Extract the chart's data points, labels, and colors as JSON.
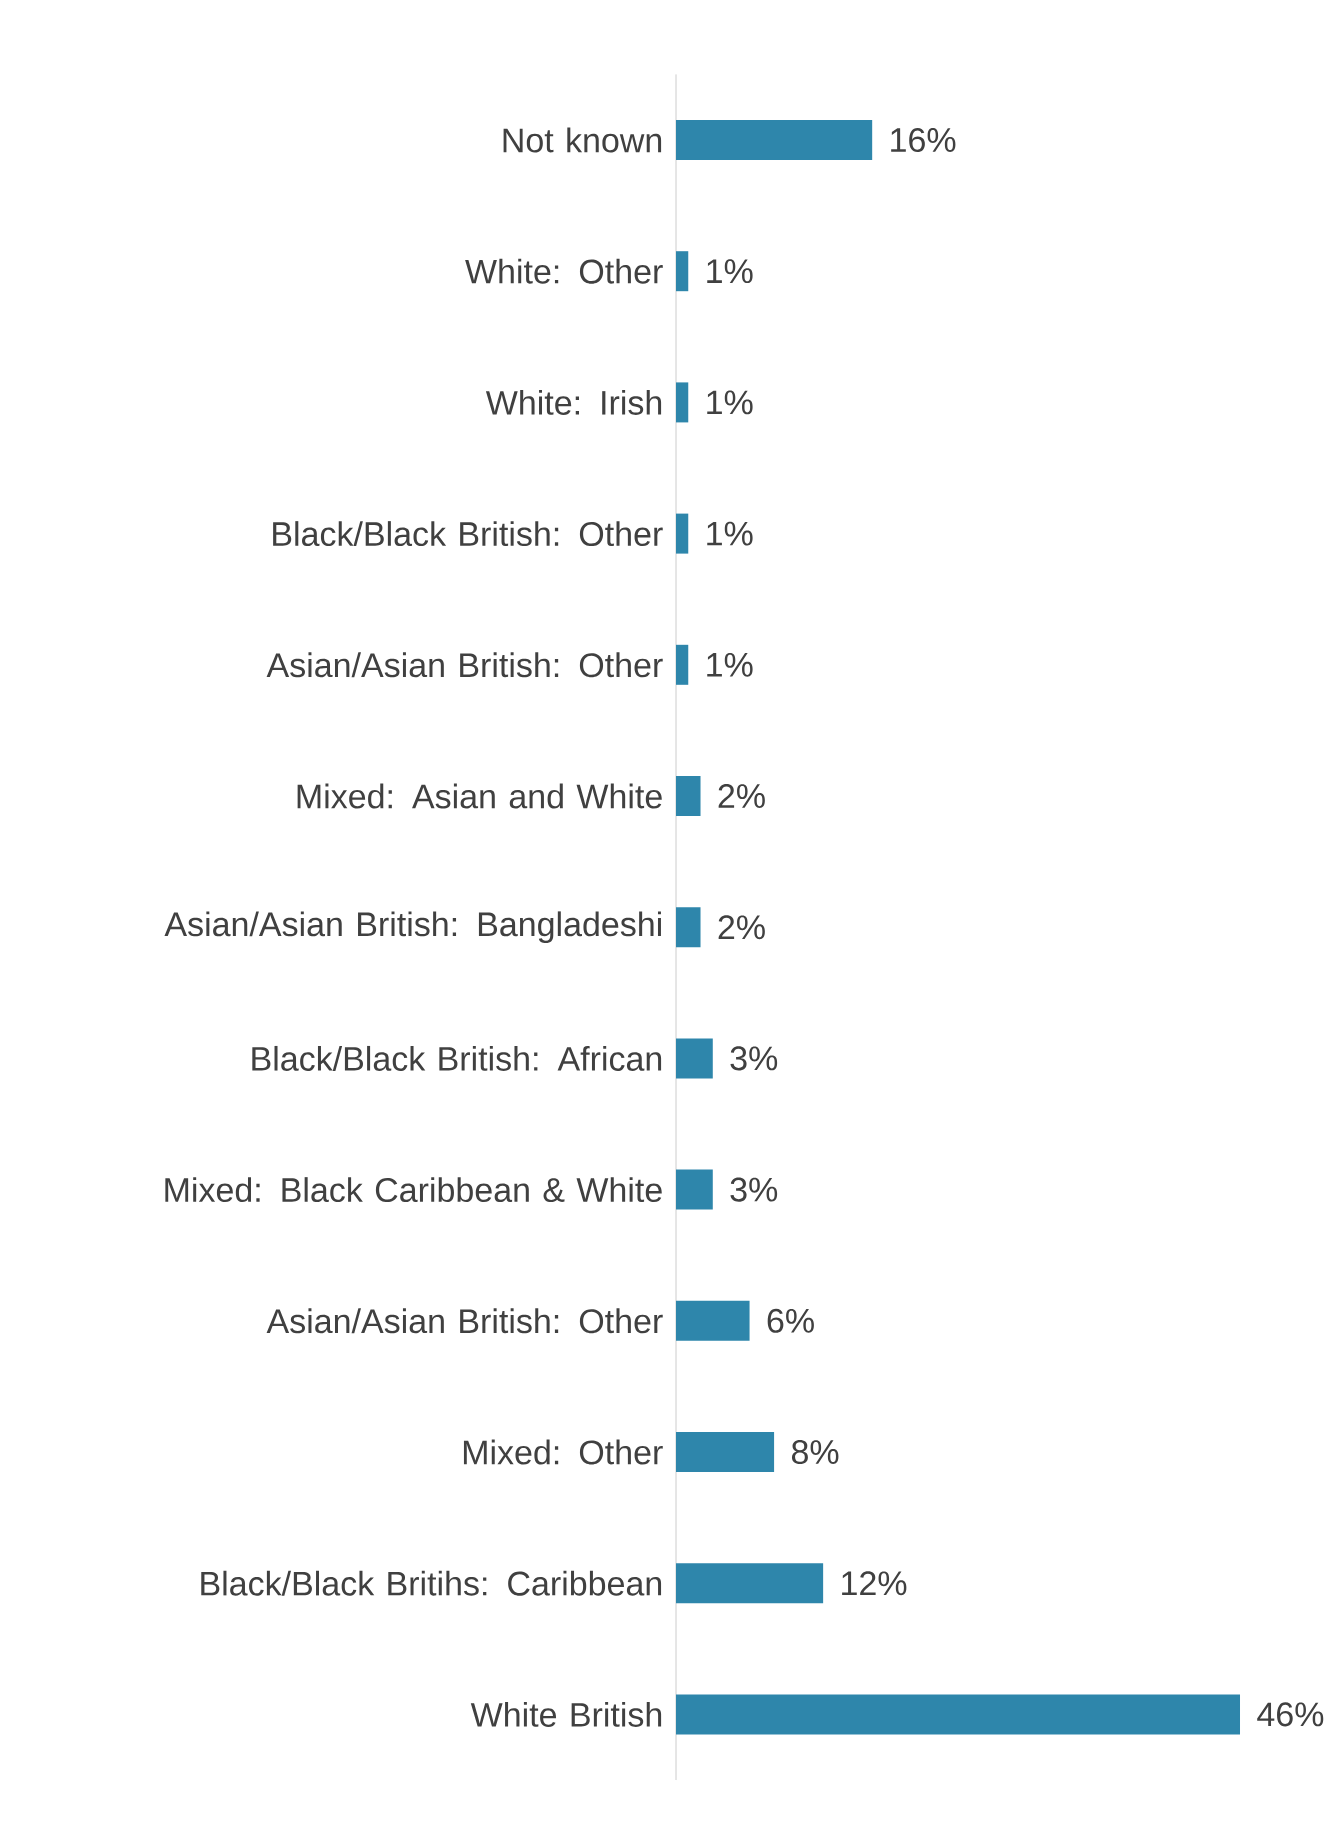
{
  "chart_data": {
    "type": "bar",
    "orientation": "horizontal",
    "color": "#2e86ab",
    "categories": [
      "Not known",
      "White: Other",
      "White: Irish",
      "Black/Black British: Other",
      "Asian/Asian British: Other",
      "Mixed: Asian and White",
      "Asian/Asian British: Bangladeshi",
      "Black/Black British: African",
      "Mixed: Black Caribbean & White",
      "Asian/Asian British: Other",
      "Mixed: Other",
      "Black/Black Britihs: Caribbean",
      "White British"
    ],
    "values": [
      16,
      1,
      1,
      1,
      1,
      2,
      2,
      3,
      3,
      6,
      8,
      12,
      46
    ],
    "value_labels": [
      "16%",
      "1%",
      "1%",
      "1%",
      "1%",
      "2%",
      "2%",
      "3%",
      "3%",
      "6%",
      "8%",
      "12%",
      "46%"
    ]
  }
}
